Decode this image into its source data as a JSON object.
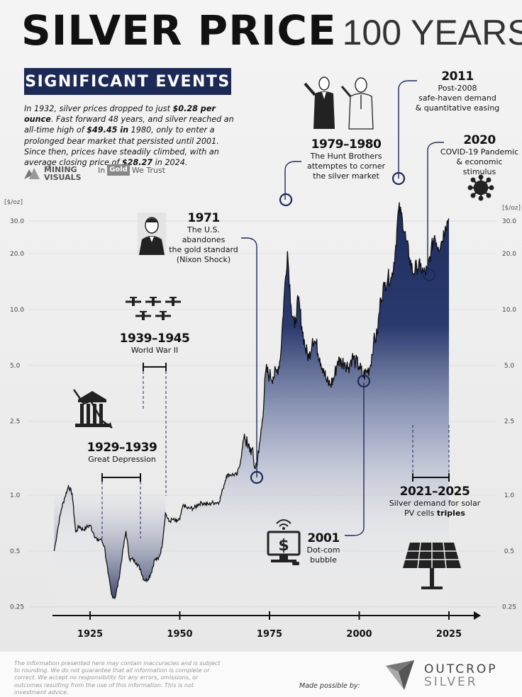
{
  "header": {
    "title_bold": "SILVER PRICE",
    "title_light": "100 YEARS",
    "banner": "SIGNIFICANT EVENTS"
  },
  "intro": {
    "p1": "In 1932, silver prices dropped to just ",
    "b1": "$0.28 per ounce",
    "p2": ". Fast forward 48 years, and silver reached an all-time high of ",
    "b2": "$49.45 in",
    "p3": " 1980, only to enter a prolonged bear market that persisted until 2001. Since then, prices have steadily climbed, with an average closing price of ",
    "b3": "$28.27",
    "p4": " in 2024."
  },
  "logos": {
    "mining_1": "MINING",
    "mining_2": "VISUALS",
    "igwt_in": "In",
    "igwt_gold": "Gold",
    "igwt_we": "We Trust"
  },
  "events": {
    "e1929": {
      "year": "1929–1939",
      "desc": "Great Depression"
    },
    "e1939": {
      "year": "1939–1945",
      "desc": "World War II"
    },
    "e1971": {
      "year": "1971",
      "d1": "The U.S. abandones",
      "d2": "the gold standard",
      "d3": "(Nixon Shock)"
    },
    "e1979": {
      "year": "1979–1980",
      "d1": "The Hunt Brothers",
      "d2": "attemptes to corner",
      "d3": "the silver market"
    },
    "e2001": {
      "year": "2001",
      "d1": "Dot-com",
      "d2": "bubble"
    },
    "e2011": {
      "year": "2011",
      "d1": "Post-2008",
      "d2": "safe-haven demand",
      "d3": "& quantitative easing"
    },
    "e2020": {
      "year": "2020",
      "d1": "COVID-19 Pandemic",
      "d2": "& economic stimulus"
    },
    "e2021": {
      "year": "2021–2025",
      "d1": "Silver demand for solar",
      "d2a": "PV cells ",
      "d2b": "triples"
    }
  },
  "axis": {
    "unit_label": "[$/oz]"
  },
  "chart_data": {
    "type": "area",
    "title": "SILVER PRICE 100 YEARS",
    "xlabel": "",
    "ylabel": "[$/oz]",
    "y_scale": "log",
    "xlim": [
      1915,
      2025
    ],
    "ylim": [
      0.25,
      35
    ],
    "x_ticks": [
      1925,
      1950,
      1975,
      2000,
      2025
    ],
    "y_ticks": [
      0.25,
      0.5,
      1.0,
      2.5,
      5.0,
      10.0,
      20.0,
      30.0
    ],
    "y_tick_labels": [
      "0.25",
      "0.5",
      "1.0",
      "2.5",
      "5.0",
      "10.0",
      "20.0",
      "30.0"
    ],
    "x": [
      1915,
      1916,
      1917,
      1918,
      1919,
      1920,
      1921,
      1922,
      1923,
      1924,
      1925,
      1926,
      1927,
      1928,
      1929,
      1930,
      1931,
      1932,
      1933,
      1934,
      1935,
      1936,
      1937,
      1938,
      1939,
      1940,
      1941,
      1942,
      1943,
      1944,
      1945,
      1946,
      1947,
      1948,
      1949,
      1950,
      1951,
      1952,
      1953,
      1954,
      1955,
      1956,
      1957,
      1958,
      1959,
      1960,
      1961,
      1962,
      1963,
      1964,
      1965,
      1966,
      1967,
      1968,
      1969,
      1970,
      1971,
      1972,
      1973,
      1974,
      1975,
      1976,
      1977,
      1978,
      1979,
      1980,
      1981,
      1982,
      1983,
      1984,
      1985,
      1986,
      1987,
      1988,
      1989,
      1990,
      1991,
      1992,
      1993,
      1994,
      1995,
      1996,
      1997,
      1998,
      1999,
      2000,
      2001,
      2002,
      2003,
      2004,
      2005,
      2006,
      2007,
      2008,
      2009,
      2010,
      2011,
      2012,
      2013,
      2014,
      2015,
      2016,
      2017,
      2018,
      2019,
      2020,
      2021,
      2022,
      2023,
      2024,
      2025
    ],
    "values": [
      0.5,
      0.66,
      0.84,
      0.98,
      1.12,
      1.02,
      0.63,
      0.68,
      0.65,
      0.67,
      0.69,
      0.62,
      0.57,
      0.58,
      0.53,
      0.38,
      0.29,
      0.28,
      0.35,
      0.48,
      0.64,
      0.45,
      0.45,
      0.43,
      0.4,
      0.35,
      0.35,
      0.38,
      0.45,
      0.45,
      0.52,
      0.8,
      0.72,
      0.74,
      0.72,
      0.74,
      0.89,
      0.85,
      0.85,
      0.85,
      0.89,
      0.91,
      0.9,
      0.89,
      0.91,
      0.91,
      0.92,
      1.08,
      1.27,
      1.29,
      1.29,
      1.29,
      1.55,
      2.14,
      1.79,
      1.77,
      1.39,
      1.68,
      2.56,
      4.71,
      4.42,
      4.35,
      4.62,
      5.4,
      11.09,
      20.63,
      10.52,
      7.95,
      11.44,
      8.14,
      6.14,
      5.47,
      7.01,
      6.53,
      5.5,
      4.82,
      4.04,
      3.94,
      4.3,
      5.29,
      5.2,
      5.2,
      4.9,
      5.54,
      5.22,
      4.95,
      4.37,
      4.6,
      4.88,
      6.67,
      7.32,
      11.55,
      13.38,
      14.99,
      14.67,
      20.19,
      35.12,
      31.15,
      23.79,
      19.08,
      15.68,
      17.14,
      17.05,
      15.71,
      16.21,
      20.55,
      25.14,
      21.73,
      23.35,
      28.27,
      31.0
    ]
  }
}
